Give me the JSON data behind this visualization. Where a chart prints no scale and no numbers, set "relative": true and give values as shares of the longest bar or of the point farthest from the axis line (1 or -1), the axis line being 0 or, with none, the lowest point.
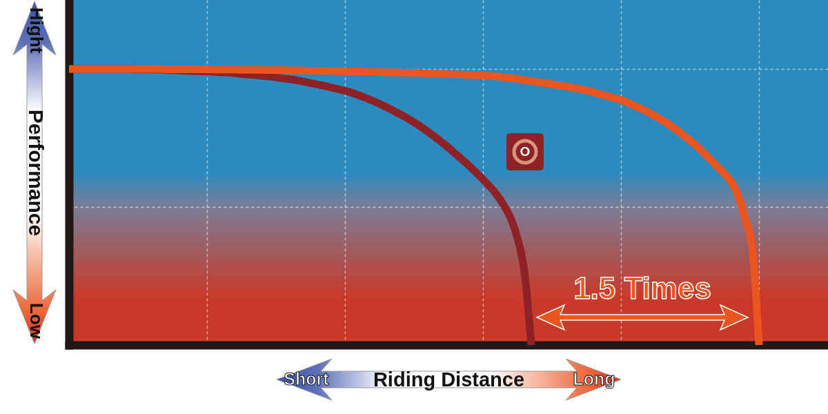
{
  "chart_data": {
    "type": "line",
    "relative": true,
    "xlabel": "Riding Distance",
    "ylabel": "Performance",
    "grid": true,
    "annotations": [
      "Hight",
      "Low",
      "Short",
      "Long",
      "1.5 Times"
    ],
    "categories": [
      null,
      null,
      null,
      null,
      null,
      null,
      null,
      null,
      null,
      null,
      null,
      null,
      null,
      null,
      null,
      null,
      null,
      null,
      null,
      null,
      null,
      null,
      null,
      null,
      null,
      null,
      null,
      null,
      null,
      null,
      null,
      null,
      null,
      null,
      null,
      null,
      null,
      null,
      null,
      null,
      null,
      null,
      null,
      null,
      null,
      null,
      null,
      null,
      null,
      null,
      null,
      null,
      null,
      null,
      null,
      null,
      null,
      null,
      null,
      null,
      null,
      null,
      null,
      null,
      null,
      null,
      null,
      null,
      null,
      null,
      null,
      null,
      null,
      null,
      null,
      null,
      null,
      null,
      null,
      null,
      null,
      null,
      null,
      null,
      null,
      null,
      null,
      null,
      null,
      null,
      null,
      null,
      null,
      null,
      null,
      null,
      null,
      null,
      null,
      null,
      null,
      null,
      null,
      null,
      null,
      null,
      null,
      null,
      null,
      null,
      null
    ],
    "series": [
      {
        "name": "O",
        "color": "#8e2226",
        "values": [
          1,
          1,
          1,
          1,
          1,
          1,
          1,
          1,
          1,
          1,
          0.999,
          0.999,
          0.998,
          0.998,
          0.997,
          0.996,
          0.995,
          0.994,
          0.993,
          0.992,
          0.991,
          0.99,
          0.988,
          0.987,
          0.985,
          0.982,
          0.98,
          0.978,
          0.975,
          0.973,
          0.97,
          0.966,
          0.963,
          0.959,
          0.954,
          0.949,
          0.944,
          0.939,
          0.933,
          0.927,
          0.921,
          0.914,
          0.905,
          0.895,
          0.885,
          0.874,
          0.862,
          0.849,
          0.836,
          0.822,
          0.807,
          0.791,
          0.773,
          0.755,
          0.735,
          0.715,
          0.693,
          0.671,
          0.649,
          0.625,
          0.6,
          0.574,
          0.544,
          0.507,
          0.46,
          0.387,
          0.267,
          0,
          null,
          null,
          null,
          null,
          null,
          null,
          null,
          null,
          null,
          null,
          null,
          null,
          null,
          null,
          null,
          null,
          null,
          null,
          null,
          null,
          null,
          null,
          null,
          null,
          null,
          null,
          null,
          null,
          null,
          null,
          null,
          null,
          null,
          null,
          null,
          null,
          null,
          null,
          null,
          null,
          null,
          null,
          null
        ]
      },
      {
        "color": "#ea5520",
        "values": [
          1,
          1,
          1,
          1,
          1,
          1,
          1,
          1,
          1,
          1,
          1,
          1,
          1,
          1,
          0.999,
          0.999,
          0.999,
          0.999,
          0.999,
          0.999,
          0.999,
          0.998,
          0.998,
          0.998,
          0.998,
          0.997,
          0.997,
          0.997,
          0.997,
          0.996,
          0.996,
          0.996,
          0.995,
          0.995,
          0.995,
          0.994,
          0.994,
          0.993,
          0.993,
          0.992,
          0.992,
          0.991,
          0.991,
          0.99,
          0.99,
          0.989,
          0.988,
          0.988,
          0.987,
          0.986,
          0.986,
          0.985,
          0.984,
          0.984,
          0.983,
          0.982,
          0.981,
          0.98,
          0.979,
          0.978,
          0.977,
          0.975,
          0.973,
          0.97,
          0.968,
          0.964,
          0.96,
          0.956,
          0.953,
          0.949,
          0.945,
          0.941,
          0.937,
          0.932,
          0.928,
          0.923,
          0.916,
          0.909,
          0.902,
          0.895,
          0.888,
          0.878,
          0.866,
          0.855,
          0.843,
          0.828,
          0.814,
          0.798,
          0.78,
          0.761,
          0.741,
          0.72,
          0.696,
          0.671,
          0.645,
          0.62,
          0.59,
          0.54,
          0.455,
          0.355,
          0,
          null,
          null,
          null,
          null,
          null,
          null,
          null,
          null,
          null,
          null
        ]
      }
    ]
  }
}
